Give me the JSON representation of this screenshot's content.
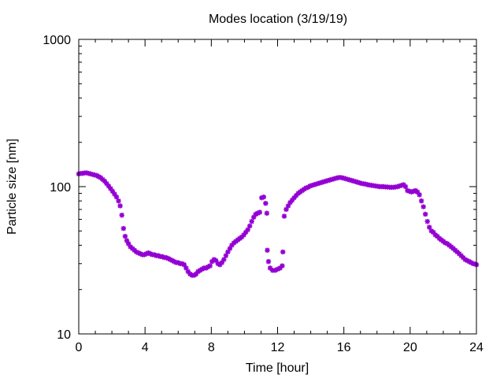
{
  "chart_data": {
    "type": "scatter",
    "title": "Modes location (3/19/19)",
    "xlabel": "Time [hour]",
    "ylabel": "Particle size [nm]",
    "xlim": [
      0,
      24
    ],
    "ylim": [
      10,
      1000
    ],
    "yscale": "log",
    "xticks": [
      0,
      4,
      8,
      12,
      16,
      20,
      24
    ],
    "xtick_labels": [
      "0",
      "4",
      "8",
      "12",
      "16",
      "20",
      "24"
    ],
    "yticks": [
      10,
      100,
      1000
    ],
    "ytick_labels": [
      "10",
      "100",
      "1000"
    ],
    "grid": false,
    "legend": "none",
    "marker": "*",
    "color": "#9400d3",
    "points": [
      [
        0.0,
        122
      ],
      [
        0.12,
        123
      ],
      [
        0.24,
        123
      ],
      [
        0.36,
        124
      ],
      [
        0.48,
        124
      ],
      [
        0.6,
        123
      ],
      [
        0.72,
        122
      ],
      [
        0.84,
        121
      ],
      [
        0.96,
        120
      ],
      [
        1.08,
        119
      ],
      [
        1.2,
        117
      ],
      [
        1.32,
        115
      ],
      [
        1.44,
        112
      ],
      [
        1.56,
        109
      ],
      [
        1.68,
        105
      ],
      [
        1.8,
        101
      ],
      [
        1.92,
        97
      ],
      [
        2.04,
        93
      ],
      [
        2.16,
        89
      ],
      [
        2.28,
        85
      ],
      [
        2.4,
        80
      ],
      [
        2.5,
        74
      ],
      [
        2.6,
        64
      ],
      [
        2.7,
        52
      ],
      [
        2.8,
        46
      ],
      [
        2.9,
        43
      ],
      [
        3.0,
        41
      ],
      [
        3.12,
        39
      ],
      [
        3.24,
        38
      ],
      [
        3.36,
        37
      ],
      [
        3.48,
        36
      ],
      [
        3.6,
        35.5
      ],
      [
        3.72,
        35
      ],
      [
        3.84,
        34.5
      ],
      [
        3.96,
        34.5
      ],
      [
        4.08,
        35
      ],
      [
        4.2,
        35.5
      ],
      [
        4.32,
        35
      ],
      [
        4.44,
        34.5
      ],
      [
        4.56,
        34.5
      ],
      [
        4.68,
        34
      ],
      [
        4.8,
        34
      ],
      [
        4.92,
        33.5
      ],
      [
        5.04,
        33.5
      ],
      [
        5.16,
        33
      ],
      [
        5.28,
        33
      ],
      [
        5.4,
        32.5
      ],
      [
        5.52,
        32
      ],
      [
        5.64,
        31.5
      ],
      [
        5.76,
        31
      ],
      [
        5.88,
        30.5
      ],
      [
        6.0,
        30.5
      ],
      [
        6.12,
        30
      ],
      [
        6.24,
        30
      ],
      [
        6.36,
        29.5
      ],
      [
        6.48,
        28
      ],
      [
        6.6,
        26.5
      ],
      [
        6.72,
        25.5
      ],
      [
        6.84,
        25
      ],
      [
        6.96,
        25
      ],
      [
        7.08,
        25.5
      ],
      [
        7.2,
        26.5
      ],
      [
        7.32,
        27
      ],
      [
        7.44,
        27.5
      ],
      [
        7.56,
        28
      ],
      [
        7.68,
        28
      ],
      [
        7.8,
        28.5
      ],
      [
        7.92,
        29
      ],
      [
        8.04,
        31
      ],
      [
        8.16,
        32
      ],
      [
        8.28,
        31.5
      ],
      [
        8.4,
        30
      ],
      [
        8.52,
        29.5
      ],
      [
        8.64,
        30.5
      ],
      [
        8.76,
        32
      ],
      [
        8.88,
        34
      ],
      [
        9.0,
        36
      ],
      [
        9.12,
        38
      ],
      [
        9.24,
        40
      ],
      [
        9.36,
        41.5
      ],
      [
        9.48,
        42.5
      ],
      [
        9.6,
        43.5
      ],
      [
        9.72,
        44.5
      ],
      [
        9.84,
        45.5
      ],
      [
        9.96,
        47
      ],
      [
        10.08,
        49
      ],
      [
        10.2,
        51
      ],
      [
        10.32,
        54
      ],
      [
        10.44,
        58
      ],
      [
        10.56,
        62
      ],
      [
        10.68,
        65
      ],
      [
        10.8,
        66
      ],
      [
        10.92,
        67
      ],
      [
        11.04,
        84
      ],
      [
        11.16,
        85
      ],
      [
        11.28,
        77
      ],
      [
        11.35,
        66
      ],
      [
        11.38,
        37
      ],
      [
        11.45,
        31
      ],
      [
        11.55,
        28
      ],
      [
        11.7,
        27
      ],
      [
        11.85,
        27
      ],
      [
        12.0,
        27.5
      ],
      [
        12.15,
        28
      ],
      [
        12.28,
        29
      ],
      [
        12.32,
        36
      ],
      [
        12.4,
        63
      ],
      [
        12.52,
        70
      ],
      [
        12.64,
        74
      ],
      [
        12.76,
        78
      ],
      [
        12.88,
        81
      ],
      [
        13.0,
        84
      ],
      [
        13.12,
        87
      ],
      [
        13.24,
        90
      ],
      [
        13.36,
        92
      ],
      [
        13.48,
        94
      ],
      [
        13.6,
        96
      ],
      [
        13.72,
        98
      ],
      [
        13.84,
        99
      ],
      [
        13.96,
        101
      ],
      [
        14.08,
        102
      ],
      [
        14.2,
        103
      ],
      [
        14.32,
        104
      ],
      [
        14.44,
        105
      ],
      [
        14.56,
        106
      ],
      [
        14.68,
        107
      ],
      [
        14.8,
        108
      ],
      [
        14.92,
        109
      ],
      [
        15.04,
        110
      ],
      [
        15.16,
        111
      ],
      [
        15.28,
        112
      ],
      [
        15.4,
        113
      ],
      [
        15.52,
        114
      ],
      [
        15.64,
        115
      ],
      [
        15.76,
        115.5
      ],
      [
        15.88,
        115
      ],
      [
        16.0,
        114
      ],
      [
        16.12,
        113
      ],
      [
        16.24,
        112
      ],
      [
        16.36,
        111
      ],
      [
        16.48,
        110
      ],
      [
        16.6,
        109
      ],
      [
        16.72,
        108
      ],
      [
        16.84,
        107
      ],
      [
        16.96,
        106
      ],
      [
        17.08,
        105
      ],
      [
        17.2,
        104.5
      ],
      [
        17.32,
        104
      ],
      [
        17.44,
        103
      ],
      [
        17.56,
        102.5
      ],
      [
        17.68,
        102
      ],
      [
        17.8,
        101.5
      ],
      [
        17.92,
        101
      ],
      [
        18.04,
        100.5
      ],
      [
        18.16,
        100
      ],
      [
        18.28,
        100
      ],
      [
        18.4,
        100
      ],
      [
        18.52,
        99.5
      ],
      [
        18.64,
        99.5
      ],
      [
        18.76,
        99
      ],
      [
        18.88,
        99
      ],
      [
        19.0,
        99
      ],
      [
        19.12,
        99.5
      ],
      [
        19.24,
        100
      ],
      [
        19.36,
        101
      ],
      [
        19.48,
        102
      ],
      [
        19.6,
        103
      ],
      [
        19.72,
        100
      ],
      [
        19.84,
        94
      ],
      [
        19.96,
        93
      ],
      [
        20.08,
        92
      ],
      [
        20.2,
        93
      ],
      [
        20.32,
        94
      ],
      [
        20.44,
        92
      ],
      [
        20.56,
        88
      ],
      [
        20.68,
        80
      ],
      [
        20.8,
        73
      ],
      [
        20.92,
        65
      ],
      [
        21.04,
        58
      ],
      [
        21.16,
        53
      ],
      [
        21.28,
        50
      ],
      [
        21.4,
        49
      ],
      [
        21.52,
        47
      ],
      [
        21.64,
        46
      ],
      [
        21.76,
        44.5
      ],
      [
        21.88,
        43.5
      ],
      [
        22.0,
        42.5
      ],
      [
        22.12,
        41.5
      ],
      [
        22.24,
        41
      ],
      [
        22.36,
        40
      ],
      [
        22.48,
        39
      ],
      [
        22.6,
        38
      ],
      [
        22.72,
        37
      ],
      [
        22.84,
        36
      ],
      [
        22.96,
        35
      ],
      [
        23.08,
        34
      ],
      [
        23.2,
        33
      ],
      [
        23.32,
        32
      ],
      [
        23.44,
        31.5
      ],
      [
        23.56,
        31
      ],
      [
        23.68,
        30.5
      ],
      [
        23.8,
        30
      ],
      [
        23.92,
        29.8
      ],
      [
        24.0,
        29.5
      ]
    ]
  }
}
